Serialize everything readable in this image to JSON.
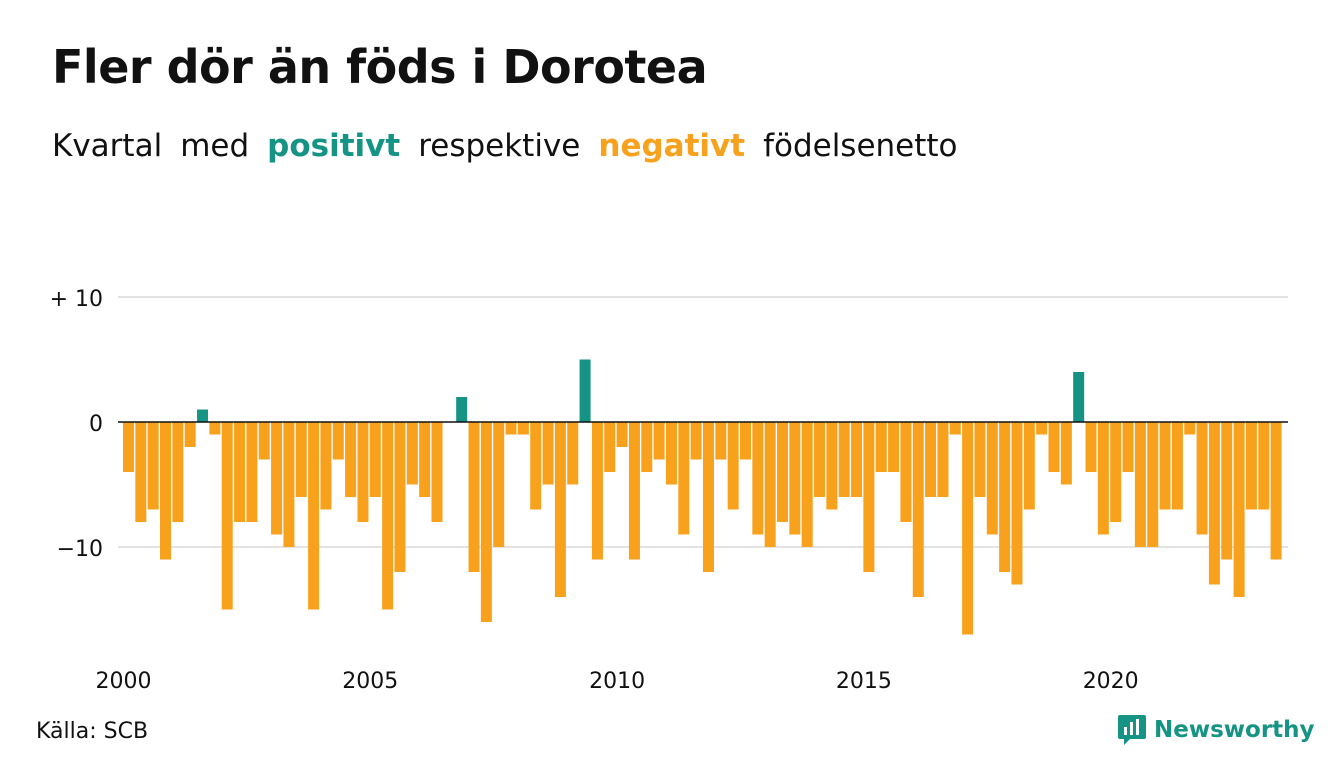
{
  "title": "Fler dör än föds i Dorotea",
  "subtitle": {
    "part1": "Kvartal",
    "part2": "med",
    "positive": "positivt",
    "part3": "respektive",
    "negative": "negativt",
    "part4": "födelsenetto"
  },
  "colors": {
    "positive": "#159384",
    "negative": "#f7a11c",
    "grid": "#e3e3e3",
    "axis": "#111111",
    "text": "#111111"
  },
  "source": "Källa: SCB",
  "brand": {
    "name": "Newsworthy",
    "icon": "newsworthy-logo-icon"
  },
  "chart_data": {
    "type": "bar",
    "x_start": "2000 Q1",
    "x_ticks": [
      "2000",
      "2005",
      "2010",
      "2015",
      "2020"
    ],
    "y_ticks": [
      "+ 10",
      "0",
      "−10"
    ],
    "ylim": [
      -19,
      11
    ],
    "grid": true,
    "legend": "none",
    "values": [
      -4,
      -8,
      -7,
      -11,
      -8,
      -2,
      1,
      -1,
      -15,
      -8,
      -8,
      -3,
      -9,
      -10,
      -6,
      -15,
      -7,
      -3,
      -6,
      -8,
      -6,
      -15,
      -12,
      -5,
      -6,
      -8,
      0,
      2,
      -12,
      -16,
      -10,
      -1,
      -1,
      -7,
      -5,
      -14,
      -5,
      5,
      -11,
      -4,
      -2,
      -11,
      -4,
      -3,
      -5,
      -9,
      -3,
      -12,
      -3,
      -7,
      -3,
      -9,
      -10,
      -8,
      -9,
      -10,
      -6,
      -7,
      -6,
      -6,
      -12,
      -4,
      -4,
      -8,
      -14,
      -6,
      -6,
      -1,
      -17,
      -6,
      -9,
      -12,
      -13,
      -7,
      -1,
      -4,
      -5,
      4,
      -4,
      -9,
      -8,
      -4,
      -10,
      -10,
      -7,
      -7,
      -1,
      -9,
      -13,
      -11,
      -14,
      -7,
      -7,
      -11
    ]
  }
}
